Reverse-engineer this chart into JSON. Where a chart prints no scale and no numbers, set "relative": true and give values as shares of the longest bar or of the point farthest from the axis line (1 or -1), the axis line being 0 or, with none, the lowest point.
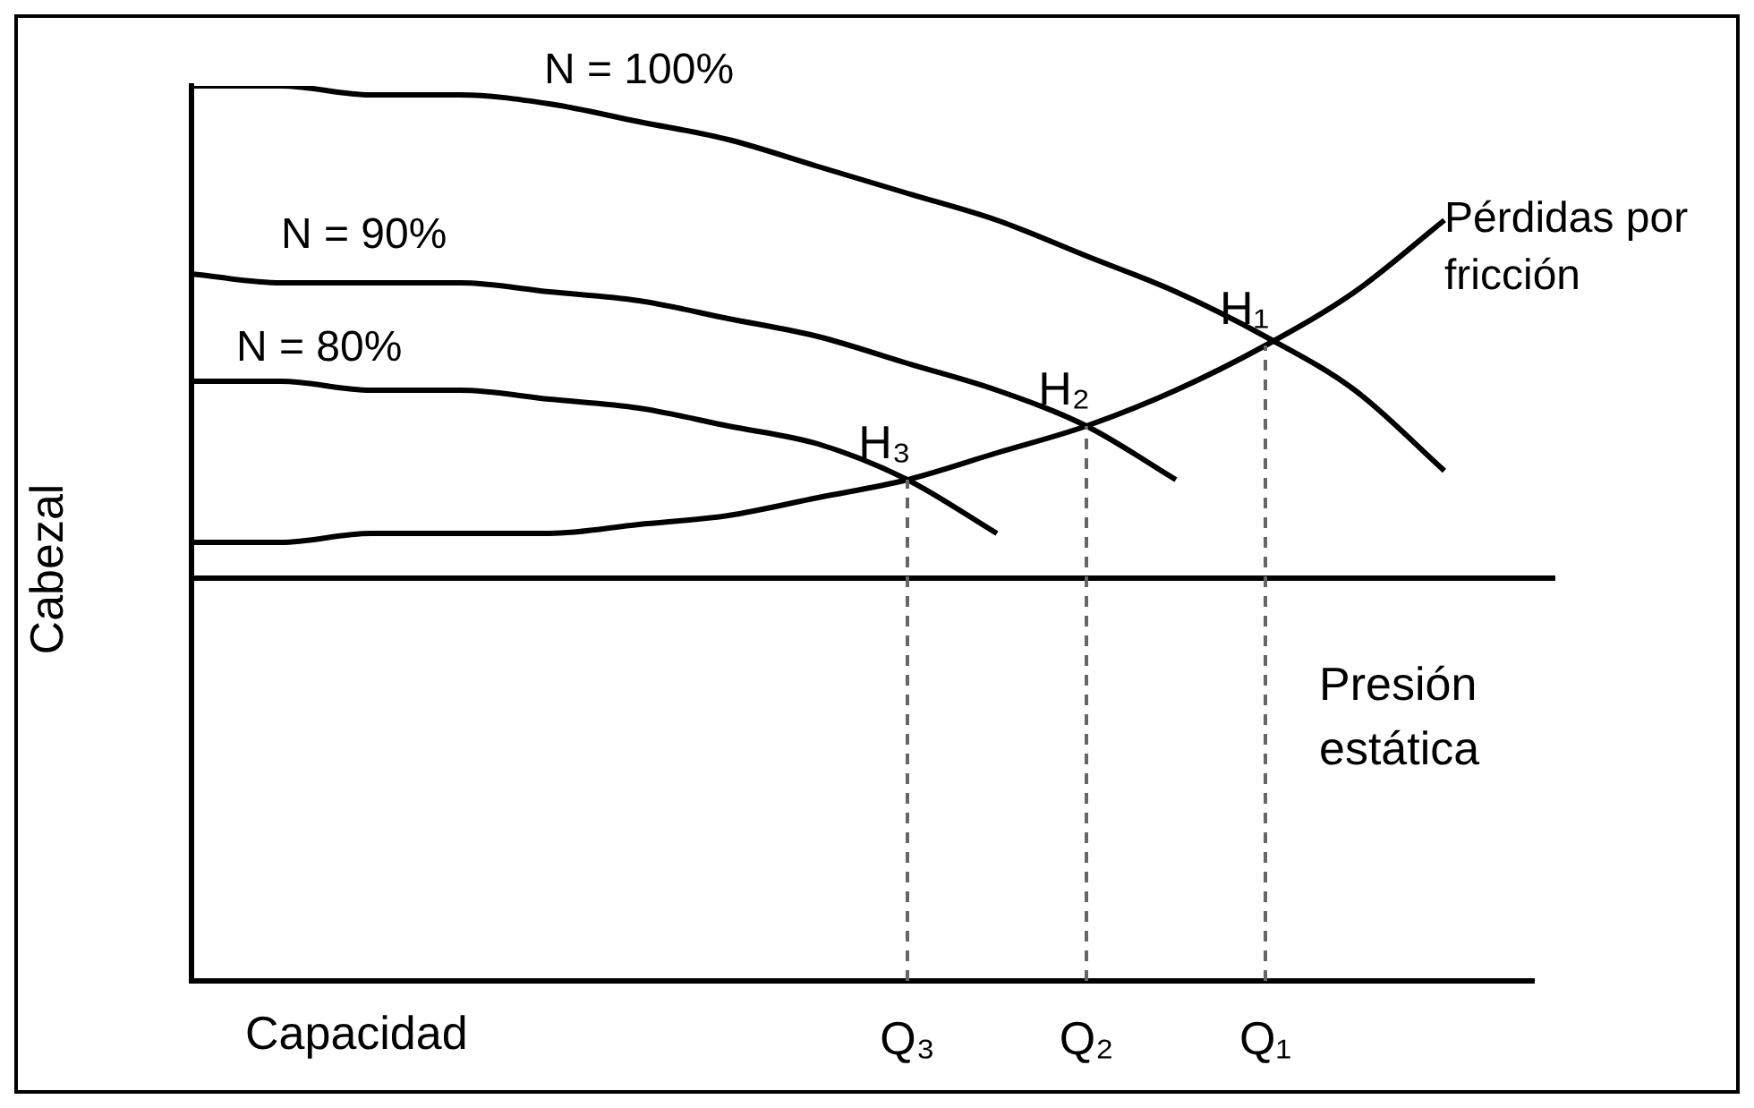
{
  "chart_data": {
    "type": "line",
    "relative": true,
    "xlabel": "Capacidad",
    "ylabel": "Cabezal",
    "grid": false,
    "legend": false,
    "marker": "none",
    "line_style": "solid",
    "categories": [
      null,
      null,
      null,
      null,
      null,
      null,
      null,
      null,
      "Q₃",
      null,
      "Q₂",
      null,
      "Q₁",
      null,
      null,
      null
    ],
    "series": [
      {
        "name": "N = 100%",
        "color": "#000000",
        "values": [
          1.0,
          1.0,
          0.99,
          0.99,
          0.98,
          0.96,
          0.94,
          0.91,
          0.88,
          0.85,
          0.81,
          0.77,
          0.72,
          0.66,
          0.57,
          null
        ]
      },
      {
        "name": "N = 90%",
        "color": "#000000",
        "values": [
          0.79,
          0.78,
          0.78,
          0.78,
          0.77,
          0.76,
          0.74,
          0.72,
          0.69,
          0.66,
          0.62,
          0.56,
          null,
          null,
          null,
          null
        ]
      },
      {
        "name": "N = 80%",
        "color": "#000000",
        "values": [
          0.67,
          0.67,
          0.66,
          0.66,
          0.65,
          0.64,
          0.62,
          0.6,
          0.56,
          0.5,
          null,
          null,
          null,
          null,
          null,
          null
        ]
      },
      {
        "name": "Pérdidas por fricción",
        "color": "#000000",
        "values": [
          0.49,
          0.49,
          0.5,
          0.5,
          0.5,
          0.51,
          0.52,
          0.54,
          0.56,
          0.59,
          0.62,
          0.66,
          0.71,
          0.77,
          0.85,
          null
        ]
      }
    ],
    "ref_lines": [
      {
        "axis": "y",
        "value": 0.45,
        "label": "Presión estática",
        "color": "#000000",
        "line_style": "solid"
      },
      {
        "axis": "x",
        "value": "Q₃",
        "color": "#666666",
        "line_style": "dashed"
      },
      {
        "axis": "x",
        "value": "Q₂",
        "color": "#666666",
        "line_style": "dashed"
      },
      {
        "axis": "x",
        "value": "Q₁",
        "color": "#666666",
        "line_style": "dashed"
      }
    ],
    "annotations": [
      {
        "text": "H₃",
        "x": "Q₃",
        "y": 0.56
      },
      {
        "text": "H₂",
        "x": "Q₂",
        "y": 0.62
      },
      {
        "text": "H₁",
        "x": "Q₁",
        "y": 0.71
      }
    ]
  }
}
